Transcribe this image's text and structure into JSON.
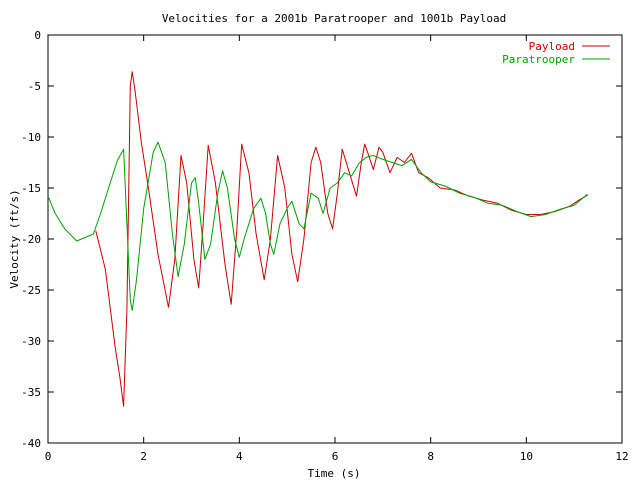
{
  "chart_data": {
    "type": "line",
    "title": "Velocities for a 2001b Paratrooper and 1001b Payload",
    "xlabel": "Time (s)",
    "ylabel": "Velocity (ft/s)",
    "xlim": [
      0,
      12
    ],
    "ylim": [
      -40,
      0
    ],
    "xticks": [
      0,
      2,
      4,
      6,
      8,
      10,
      12
    ],
    "yticks": [
      0,
      -5,
      -10,
      -15,
      -20,
      -25,
      -30,
      -35,
      -40
    ],
    "grid": false,
    "legend_position": "top-right",
    "series": [
      {
        "name": "Payload",
        "color": "#cc0000",
        "points": [
          [
            1.0,
            -19.2
          ],
          [
            1.2,
            -23.0
          ],
          [
            1.4,
            -30.5
          ],
          [
            1.5,
            -33.5
          ],
          [
            1.58,
            -36.4
          ],
          [
            1.65,
            -27.0
          ],
          [
            1.72,
            -5.0
          ],
          [
            1.76,
            -3.6
          ],
          [
            1.82,
            -5.5
          ],
          [
            1.95,
            -10.5
          ],
          [
            2.1,
            -15.0
          ],
          [
            2.3,
            -21.5
          ],
          [
            2.52,
            -26.7
          ],
          [
            2.65,
            -22.0
          ],
          [
            2.78,
            -11.8
          ],
          [
            2.9,
            -14.5
          ],
          [
            3.05,
            -22.0
          ],
          [
            3.15,
            -24.8
          ],
          [
            3.25,
            -18.0
          ],
          [
            3.35,
            -10.8
          ],
          [
            3.5,
            -14.5
          ],
          [
            3.7,
            -22.5
          ],
          [
            3.83,
            -26.4
          ],
          [
            3.95,
            -19.0
          ],
          [
            4.05,
            -10.7
          ],
          [
            4.2,
            -13.5
          ],
          [
            4.35,
            -19.5
          ],
          [
            4.52,
            -24.0
          ],
          [
            4.65,
            -20.0
          ],
          [
            4.8,
            -11.8
          ],
          [
            4.95,
            -15.0
          ],
          [
            5.1,
            -21.5
          ],
          [
            5.22,
            -24.2
          ],
          [
            5.35,
            -20.0
          ],
          [
            5.5,
            -12.5
          ],
          [
            5.6,
            -11.0
          ],
          [
            5.7,
            -12.5
          ],
          [
            5.85,
            -17.5
          ],
          [
            5.95,
            -19.0
          ],
          [
            6.05,
            -15.5
          ],
          [
            6.15,
            -11.2
          ],
          [
            6.3,
            -13.5
          ],
          [
            6.45,
            -15.8
          ],
          [
            6.55,
            -12.5
          ],
          [
            6.62,
            -10.7
          ],
          [
            6.72,
            -12.0
          ],
          [
            6.8,
            -13.2
          ],
          [
            6.92,
            -11.0
          ],
          [
            7.0,
            -11.5
          ],
          [
            7.15,
            -13.5
          ],
          [
            7.3,
            -12.0
          ],
          [
            7.45,
            -12.5
          ],
          [
            7.6,
            -11.6
          ],
          [
            7.75,
            -13.5
          ],
          [
            7.95,
            -14.0
          ],
          [
            8.2,
            -15.0
          ],
          [
            8.5,
            -15.2
          ],
          [
            8.8,
            -15.8
          ],
          [
            9.1,
            -16.2
          ],
          [
            9.4,
            -16.5
          ],
          [
            9.7,
            -17.2
          ],
          [
            10.0,
            -17.6
          ],
          [
            10.3,
            -17.6
          ],
          [
            10.6,
            -17.3
          ],
          [
            10.9,
            -16.8
          ],
          [
            11.1,
            -16.2
          ],
          [
            11.28,
            -15.7
          ]
        ]
      },
      {
        "name": "Paratrooper",
        "color": "#00a000",
        "points": [
          [
            0.0,
            -15.8
          ],
          [
            0.15,
            -17.5
          ],
          [
            0.35,
            -19.0
          ],
          [
            0.6,
            -20.2
          ],
          [
            0.8,
            -19.8
          ],
          [
            0.95,
            -19.5
          ],
          [
            1.1,
            -17.5
          ],
          [
            1.3,
            -14.5
          ],
          [
            1.45,
            -12.3
          ],
          [
            1.58,
            -11.2
          ],
          [
            1.65,
            -18.5
          ],
          [
            1.72,
            -26.0
          ],
          [
            1.76,
            -27.0
          ],
          [
            1.85,
            -24.0
          ],
          [
            2.0,
            -17.0
          ],
          [
            2.2,
            -11.5
          ],
          [
            2.3,
            -10.5
          ],
          [
            2.45,
            -12.5
          ],
          [
            2.6,
            -19.5
          ],
          [
            2.72,
            -23.7
          ],
          [
            2.85,
            -20.5
          ],
          [
            3.0,
            -14.5
          ],
          [
            3.08,
            -14.0
          ],
          [
            3.15,
            -16.5
          ],
          [
            3.28,
            -22.0
          ],
          [
            3.4,
            -20.5
          ],
          [
            3.55,
            -15.5
          ],
          [
            3.65,
            -13.3
          ],
          [
            3.75,
            -15.0
          ],
          [
            3.9,
            -20.0
          ],
          [
            4.0,
            -21.8
          ],
          [
            4.1,
            -20.0
          ],
          [
            4.3,
            -17.0
          ],
          [
            4.45,
            -16.0
          ],
          [
            4.55,
            -17.5
          ],
          [
            4.65,
            -20.5
          ],
          [
            4.72,
            -21.5
          ],
          [
            4.85,
            -18.5
          ],
          [
            5.0,
            -17.0
          ],
          [
            5.1,
            -16.3
          ],
          [
            5.25,
            -18.5
          ],
          [
            5.35,
            -19.0
          ],
          [
            5.5,
            -15.5
          ],
          [
            5.65,
            -16.0
          ],
          [
            5.75,
            -17.5
          ],
          [
            5.9,
            -15.0
          ],
          [
            6.05,
            -14.5
          ],
          [
            6.2,
            -13.5
          ],
          [
            6.35,
            -13.8
          ],
          [
            6.5,
            -12.6
          ],
          [
            6.65,
            -12.0
          ],
          [
            6.8,
            -11.8
          ],
          [
            7.0,
            -12.2
          ],
          [
            7.2,
            -12.5
          ],
          [
            7.4,
            -12.8
          ],
          [
            7.6,
            -12.2
          ],
          [
            7.8,
            -13.5
          ],
          [
            8.0,
            -14.4
          ],
          [
            8.3,
            -14.8
          ],
          [
            8.6,
            -15.5
          ],
          [
            8.9,
            -15.9
          ],
          [
            9.2,
            -16.5
          ],
          [
            9.5,
            -16.7
          ],
          [
            9.8,
            -17.3
          ],
          [
            10.1,
            -17.8
          ],
          [
            10.4,
            -17.6
          ],
          [
            10.7,
            -17.1
          ],
          [
            11.0,
            -16.7
          ],
          [
            11.28,
            -15.6
          ]
        ]
      }
    ]
  }
}
